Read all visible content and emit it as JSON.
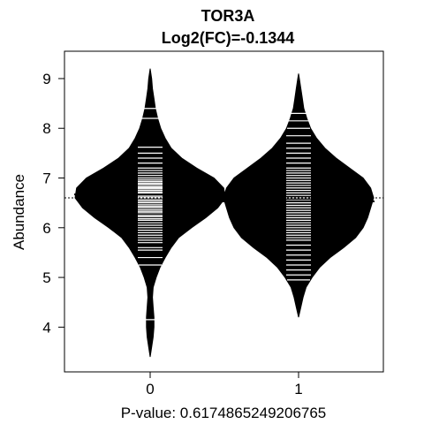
{
  "chart_data": {
    "type": "beanplot",
    "title": "TOR3A",
    "subtitle": "Log2(FC)=-0.1344",
    "xlabel": "P-value: 0.6174865249206765",
    "ylabel": "Abundance",
    "categories": [
      "0",
      "1"
    ],
    "y_ticks": [
      4,
      5,
      6,
      7,
      8,
      9
    ],
    "y_tick_labels": [
      "4",
      "5",
      "6",
      "7",
      "8",
      "9"
    ],
    "ylim": [
      3.1,
      9.55
    ],
    "overall_mean": 6.6,
    "groups": [
      {
        "name": "0",
        "mean": 6.67,
        "density": [
          [
            3.4,
            0.0
          ],
          [
            3.6,
            0.02
          ],
          [
            3.8,
            0.04
          ],
          [
            4.0,
            0.05
          ],
          [
            4.2,
            0.05
          ],
          [
            4.4,
            0.04
          ],
          [
            4.6,
            0.03
          ],
          [
            4.8,
            0.04
          ],
          [
            5.0,
            0.08
          ],
          [
            5.2,
            0.13
          ],
          [
            5.4,
            0.2
          ],
          [
            5.6,
            0.28
          ],
          [
            5.8,
            0.38
          ],
          [
            6.0,
            0.55
          ],
          [
            6.2,
            0.74
          ],
          [
            6.4,
            0.9
          ],
          [
            6.6,
            1.0
          ],
          [
            6.8,
            0.98
          ],
          [
            7.0,
            0.85
          ],
          [
            7.2,
            0.62
          ],
          [
            7.4,
            0.42
          ],
          [
            7.6,
            0.28
          ],
          [
            7.8,
            0.2
          ],
          [
            8.0,
            0.14
          ],
          [
            8.2,
            0.1
          ],
          [
            8.4,
            0.07
          ],
          [
            8.6,
            0.05
          ],
          [
            8.8,
            0.03
          ],
          [
            9.0,
            0.02
          ],
          [
            9.2,
            0.0
          ]
        ],
        "observations": [
          4.15,
          5.25,
          5.4,
          5.55,
          5.6,
          5.7,
          5.75,
          5.8,
          5.85,
          5.9,
          5.95,
          6.0,
          6.05,
          6.1,
          6.15,
          6.18,
          6.22,
          6.25,
          6.3,
          6.33,
          6.36,
          6.4,
          6.43,
          6.46,
          6.5,
          6.53,
          6.56,
          6.6,
          6.62,
          6.65,
          6.68,
          6.7,
          6.72,
          6.75,
          6.78,
          6.8,
          6.82,
          6.85,
          6.88,
          6.9,
          6.93,
          6.96,
          7.0,
          7.05,
          7.1,
          7.15,
          7.2,
          7.3,
          7.4,
          7.5,
          7.62,
          8.2,
          8.4
        ]
      },
      {
        "name": "1",
        "mean": 6.53,
        "density": [
          [
            4.2,
            0.0
          ],
          [
            4.4,
            0.03
          ],
          [
            4.6,
            0.06
          ],
          [
            4.8,
            0.1
          ],
          [
            5.0,
            0.18
          ],
          [
            5.2,
            0.28
          ],
          [
            5.4,
            0.42
          ],
          [
            5.6,
            0.6
          ],
          [
            5.8,
            0.76
          ],
          [
            6.0,
            0.86
          ],
          [
            6.2,
            0.92
          ],
          [
            6.4,
            0.96
          ],
          [
            6.6,
            1.0
          ],
          [
            6.8,
            0.96
          ],
          [
            7.0,
            0.86
          ],
          [
            7.2,
            0.68
          ],
          [
            7.4,
            0.5
          ],
          [
            7.6,
            0.35
          ],
          [
            7.8,
            0.24
          ],
          [
            8.0,
            0.16
          ],
          [
            8.2,
            0.11
          ],
          [
            8.4,
            0.07
          ],
          [
            8.6,
            0.05
          ],
          [
            8.8,
            0.03
          ],
          [
            9.0,
            0.01
          ],
          [
            9.1,
            0.0
          ]
        ],
        "observations": [
          4.95,
          5.05,
          5.15,
          5.25,
          5.35,
          5.45,
          5.55,
          5.65,
          5.75,
          5.8,
          5.85,
          5.9,
          5.95,
          6.0,
          6.05,
          6.1,
          6.15,
          6.2,
          6.25,
          6.3,
          6.35,
          6.4,
          6.45,
          6.5,
          6.55,
          6.6,
          6.65,
          6.7,
          6.75,
          6.8,
          6.85,
          6.9,
          6.95,
          7.0,
          7.05,
          7.1,
          7.15,
          7.2,
          7.3,
          7.4,
          7.5,
          7.6,
          7.7,
          7.85,
          8.0,
          8.15,
          8.3
        ]
      }
    ],
    "grid": false,
    "legend": "none"
  }
}
